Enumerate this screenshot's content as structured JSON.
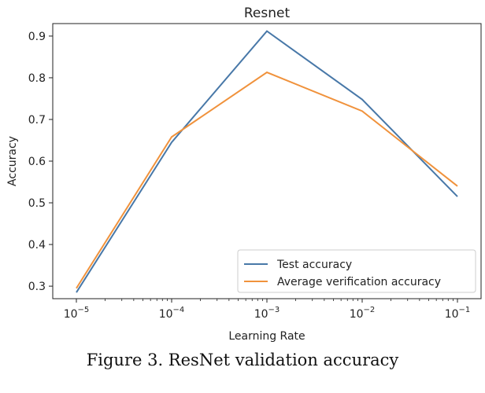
{
  "caption": "Figure 3. ResNet validation accuracy",
  "chart_data": {
    "type": "line",
    "title": "Resnet",
    "xlabel": "Learning Rate",
    "ylabel": "Accuracy",
    "xscale": "log",
    "x": [
      1e-05,
      0.0001,
      0.001,
      0.01,
      0.1
    ],
    "x_tick_labels": [
      {
        "base": "10",
        "exp": "−5"
      },
      {
        "base": "10",
        "exp": "−4"
      },
      {
        "base": "10",
        "exp": "−3"
      },
      {
        "base": "10",
        "exp": "−2"
      },
      {
        "base": "10",
        "exp": "−1"
      }
    ],
    "y_ticks": [
      "0.3",
      "0.4",
      "0.5",
      "0.6",
      "0.7",
      "0.8",
      "0.9"
    ],
    "ylim": [
      0.27,
      0.93
    ],
    "grid": false,
    "legend_position": "lower-right",
    "series": [
      {
        "name": "Test accuracy",
        "color": "#4878a8",
        "values": [
          0.285,
          0.645,
          0.912,
          0.748,
          0.515
        ]
      },
      {
        "name": "Average verification accuracy",
        "color": "#f0923c",
        "values": [
          0.295,
          0.658,
          0.813,
          0.72,
          0.54
        ]
      }
    ]
  }
}
